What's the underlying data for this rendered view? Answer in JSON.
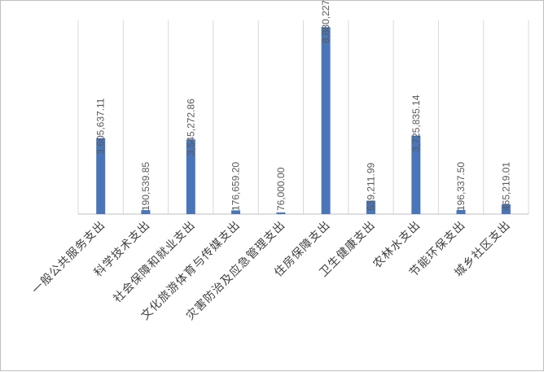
{
  "chart_data": {
    "type": "bar",
    "title": "",
    "xlabel": "",
    "ylabel": "",
    "categories": [
      "一般公共服务支出",
      "科学技术支出",
      "社会保障和就业支出",
      "文化旅游体育与传媒支出",
      "灾害防治及应急管理支出",
      "住房保障支出",
      "卫生健康支出",
      "农林水支出",
      "节能环保支出",
      "城乡社区支出"
    ],
    "values": [
      3605637.11,
      190539.85,
      3545272.86,
      176659.2,
      76000.0,
      8880227,
      639211.99,
      3725835.14,
      196337.5,
      465219.01
    ],
    "data_labels": [
      "3,605,637.11",
      "190,539.85",
      "3,545,272.86",
      "176,659.20",
      "76,000.00",
      "8,880,227",
      "639,211.99",
      "3,725,835.14",
      "196,337.50",
      "465,219.01"
    ],
    "ylim": [
      0,
      9200000
    ],
    "grid": true,
    "legend": "none",
    "colors": {
      "bar": "#4a76b9",
      "grid": "#d9d9d9",
      "text": "#595959"
    }
  }
}
